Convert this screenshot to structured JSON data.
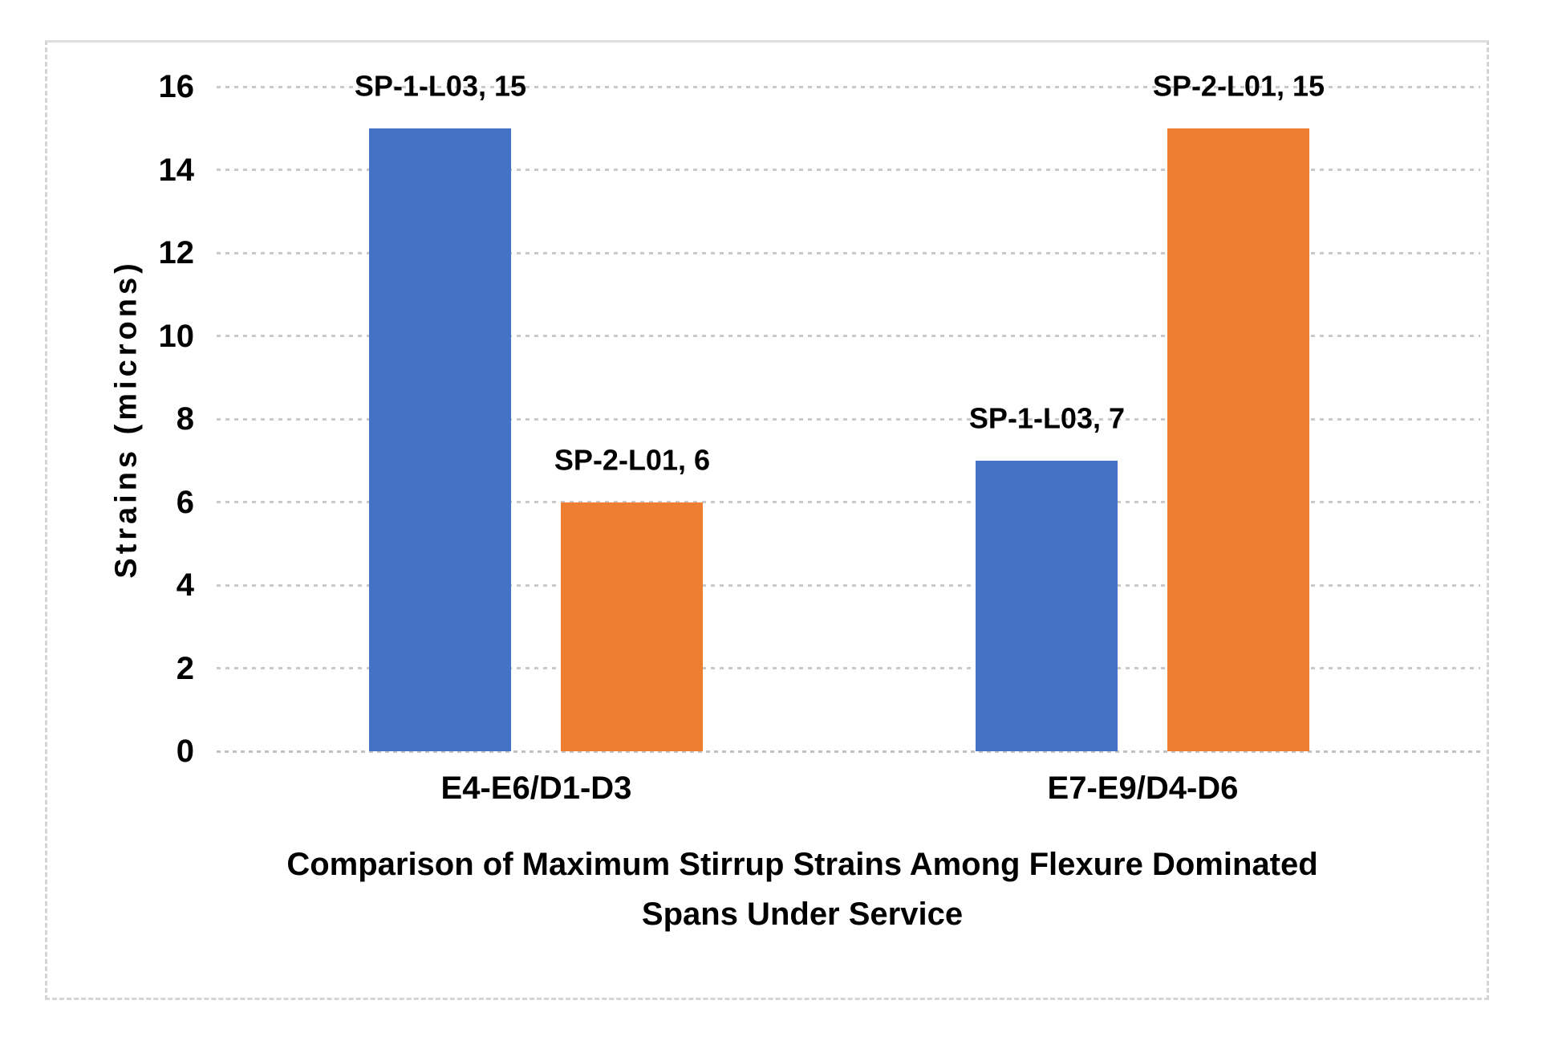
{
  "colors": {
    "series_blue": "#4472C4",
    "series_orange": "#ED7D31",
    "gridline": "#c9c9c9",
    "frame_border": "#d4d4d4",
    "text": "#000000",
    "background": "#ffffff"
  },
  "chart_data": {
    "type": "bar",
    "title": "Comparison of Maximum Stirrup Strains Among Flexure Dominated Spans Under Service",
    "title_lines": [
      "Comparison of Maximum Stirrup Strains Among Flexure Dominated",
      "Spans Under Service"
    ],
    "xlabel": "",
    "ylabel": "Strains (microns)",
    "categories": [
      "E4-E6/D1-D3",
      "E7-E9/D4-D6"
    ],
    "series": [
      {
        "name": "SP-1-L03",
        "color": "#4472C4",
        "values": [
          15,
          7
        ]
      },
      {
        "name": "SP-2-L01",
        "color": "#ED7D31",
        "values": [
          6,
          15
        ]
      }
    ],
    "data_labels": [
      [
        "SP-1-L03, 15",
        "SP-2-L01, 6"
      ],
      [
        "SP-1-L03, 7",
        "SP-2-L01, 15"
      ]
    ],
    "ylim": [
      0,
      16
    ],
    "yticks": [
      0,
      2,
      4,
      6,
      8,
      10,
      12,
      14,
      16
    ],
    "grid": "horizontal dotted",
    "legend": "none"
  }
}
